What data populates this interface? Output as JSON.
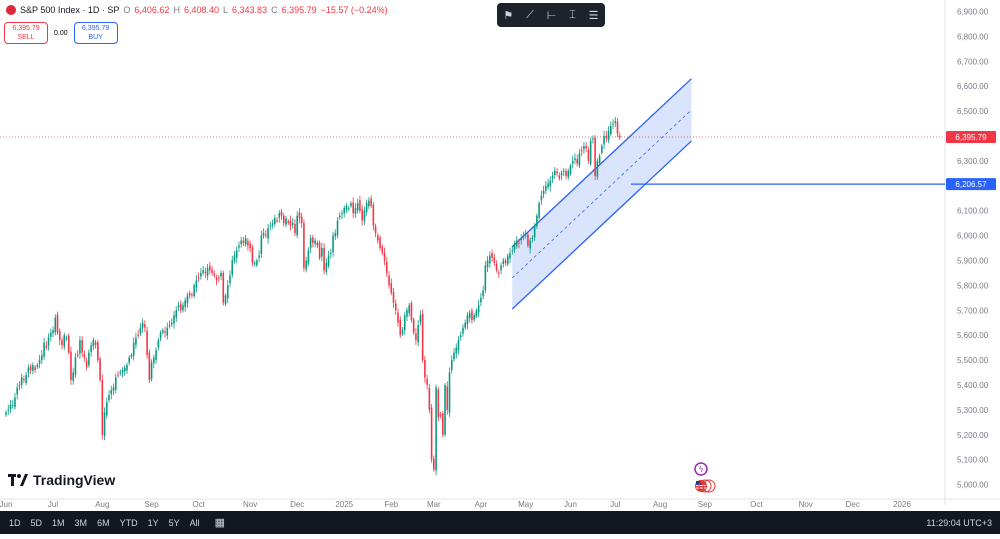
{
  "legend": {
    "title": "S&P 500 Index · 1D · SP",
    "open_label": "O",
    "open": "6,406.62",
    "high_label": "H",
    "high": "6,408.40",
    "low_label": "L",
    "low": "6,343.83",
    "close_label": "C",
    "close": "6,395.79",
    "change": "−15.57 (−0.24%)"
  },
  "trade": {
    "sell_price": "6,395.79",
    "sell_label": "SELL",
    "spread": "0.00",
    "buy_price": "6,395.79",
    "buy_label": "BUY"
  },
  "logo": {
    "text": "TradingView"
  },
  "bottombar": {
    "timeframes": [
      "1D",
      "5D",
      "1M",
      "3M",
      "6M",
      "YTD",
      "1Y",
      "5Y",
      "All"
    ],
    "time": "11:29:04 UTC+3"
  },
  "icons": [
    "flag-icon",
    "line-tool-icon",
    "measure-icon",
    "settings-lines-icon",
    "compare-icon",
    "lightning-icon",
    "us-flag-icon"
  ],
  "colors": {
    "up": "#089981",
    "down": "#f23645",
    "channel": "#2962ff",
    "channel_fill": "#bbd0fb",
    "price_line": "#f23645",
    "level_line": "#2962ff"
  },
  "chart_data": {
    "type": "candlestick",
    "series_name": "S&P 500 Index",
    "interval": "1D",
    "y_axis": {
      "ticks": [
        5000,
        5100,
        5200,
        5300,
        5400,
        5500,
        5600,
        5700,
        5800,
        5900,
        6000,
        6100,
        6200,
        6300,
        6400,
        6500,
        6600,
        6700,
        6800,
        6900
      ],
      "tick_labels": [
        "5,000.00",
        "5,100.00",
        "5,200.00",
        "5,300.00",
        "5,400.00",
        "5,500.00",
        "5,600.00",
        "5,700.00",
        "5,800.00",
        "5,900.00",
        "6,000.00",
        "6,100.00",
        "6,200.00",
        "6,300.00",
        "6,400.00",
        "6,500.00",
        "6,600.00",
        "6,700.00",
        "6,800.00",
        "6,900.00"
      ],
      "range": [
        4950,
        6930
      ]
    },
    "x_axis": {
      "labels": [
        "Jun",
        "Jul",
        "Aug",
        "Sep",
        "Oct",
        "Nov",
        "Dec",
        "2025",
        "Feb",
        "Mar",
        "Apr",
        "May",
        "Jun",
        "Jul",
        "Aug",
        "Sep",
        "Oct",
        "Nov",
        "Dec",
        "2026"
      ],
      "label_index": [
        0,
        21,
        43,
        65,
        86,
        109,
        130,
        151,
        172,
        191,
        212,
        232,
        252,
        272,
        292,
        312,
        335,
        357,
        378,
        400
      ]
    },
    "price_line": {
      "value": 6395.79,
      "label": "6,395.79"
    },
    "level_line": {
      "value": 6206.57,
      "label": "6,206.57",
      "start_index": 279
    },
    "channel": {
      "start_index": 226,
      "end_index": 306,
      "lower_start": 5705,
      "lower_end": 6380,
      "upper_start": 5955,
      "upper_end": 6630
    },
    "closes": [
      5290,
      5300,
      5320,
      5320,
      5350,
      5390,
      5400,
      5430,
      5420,
      5440,
      5470,
      5460,
      5480,
      5460,
      5480,
      5500,
      5520,
      5570,
      5550,
      5590,
      5610,
      5620,
      5670,
      5610,
      5580,
      5560,
      5600,
      5590,
      5530,
      5420,
      5450,
      5510,
      5520,
      5580,
      5530,
      5510,
      5470,
      5530,
      5560,
      5580,
      5560,
      5500,
      5420,
      5200,
      5290,
      5330,
      5360,
      5380,
      5390,
      5430,
      5440,
      5450,
      5460,
      5470,
      5480,
      5510,
      5520,
      5570,
      5590,
      5600,
      5630,
      5650,
      5630,
      5520,
      5420,
      5490,
      5510,
      5540,
      5580,
      5610,
      5620,
      5610,
      5630,
      5640,
      5650,
      5680,
      5700,
      5720,
      5700,
      5720,
      5740,
      5760,
      5760,
      5760,
      5800,
      5820,
      5830,
      5850,
      5860,
      5850,
      5870,
      5860,
      5850,
      5840,
      5820,
      5830,
      5850,
      5730,
      5760,
      5800,
      5840,
      5900,
      5920,
      5940,
      5960,
      5980,
      5970,
      5990,
      5960,
      5950,
      5890,
      5890,
      5900,
      5920,
      6000,
      6010,
      6000,
      6030,
      6040,
      6050,
      6070,
      6060,
      6090,
      6080,
      6050,
      6070,
      6050,
      6040,
      6050,
      6010,
      6080,
      6070,
      6050,
      5870,
      5900,
      5940,
      5990,
      5970,
      5980,
      5960,
      5910,
      5950,
      5860,
      5890,
      5920,
      5930,
      6000,
      6010,
      6060,
      6080,
      6090,
      6110,
      6120,
      6110,
      6130,
      6090,
      6110,
      6130,
      6100,
      6060,
      6100,
      6130,
      6140,
      6120,
      6040,
      6010,
      5980,
      5950,
      5930,
      5900,
      5850,
      5800,
      5770,
      5730,
      5700,
      5650,
      5600,
      5620,
      5680,
      5700,
      5720,
      5660,
      5610,
      5580,
      5640,
      5680,
      5500,
      5430,
      5400,
      5300,
      5100,
      5060,
      5390,
      5270,
      5280,
      5200,
      5400,
      5300,
      5450,
      5500,
      5530,
      5550,
      5580,
      5600,
      5630,
      5650,
      5680,
      5690,
      5660,
      5680,
      5700,
      5720,
      5750,
      5780,
      5880,
      5900,
      5920,
      5910,
      5890,
      5860,
      5850,
      5880,
      5900,
      5890,
      5920,
      5930,
      5940,
      5960,
      5980,
      5970,
      5990,
      6000,
      6010,
      5960,
      5980,
      5990,
      6040,
      6080,
      6130,
      6160,
      6180,
      6200,
      6210,
      6220,
      6240,
      6260,
      6250,
      6230,
      6250,
      6260,
      6240,
      6260,
      6280,
      6300,
      6310,
      6290,
      6330,
      6340,
      6360,
      6350,
      6300,
      6380,
      6390,
      6240,
      6300,
      6320,
      6360,
      6400,
      6390,
      6420,
      6440,
      6450,
      6460,
      6410,
      6395.79
    ]
  }
}
